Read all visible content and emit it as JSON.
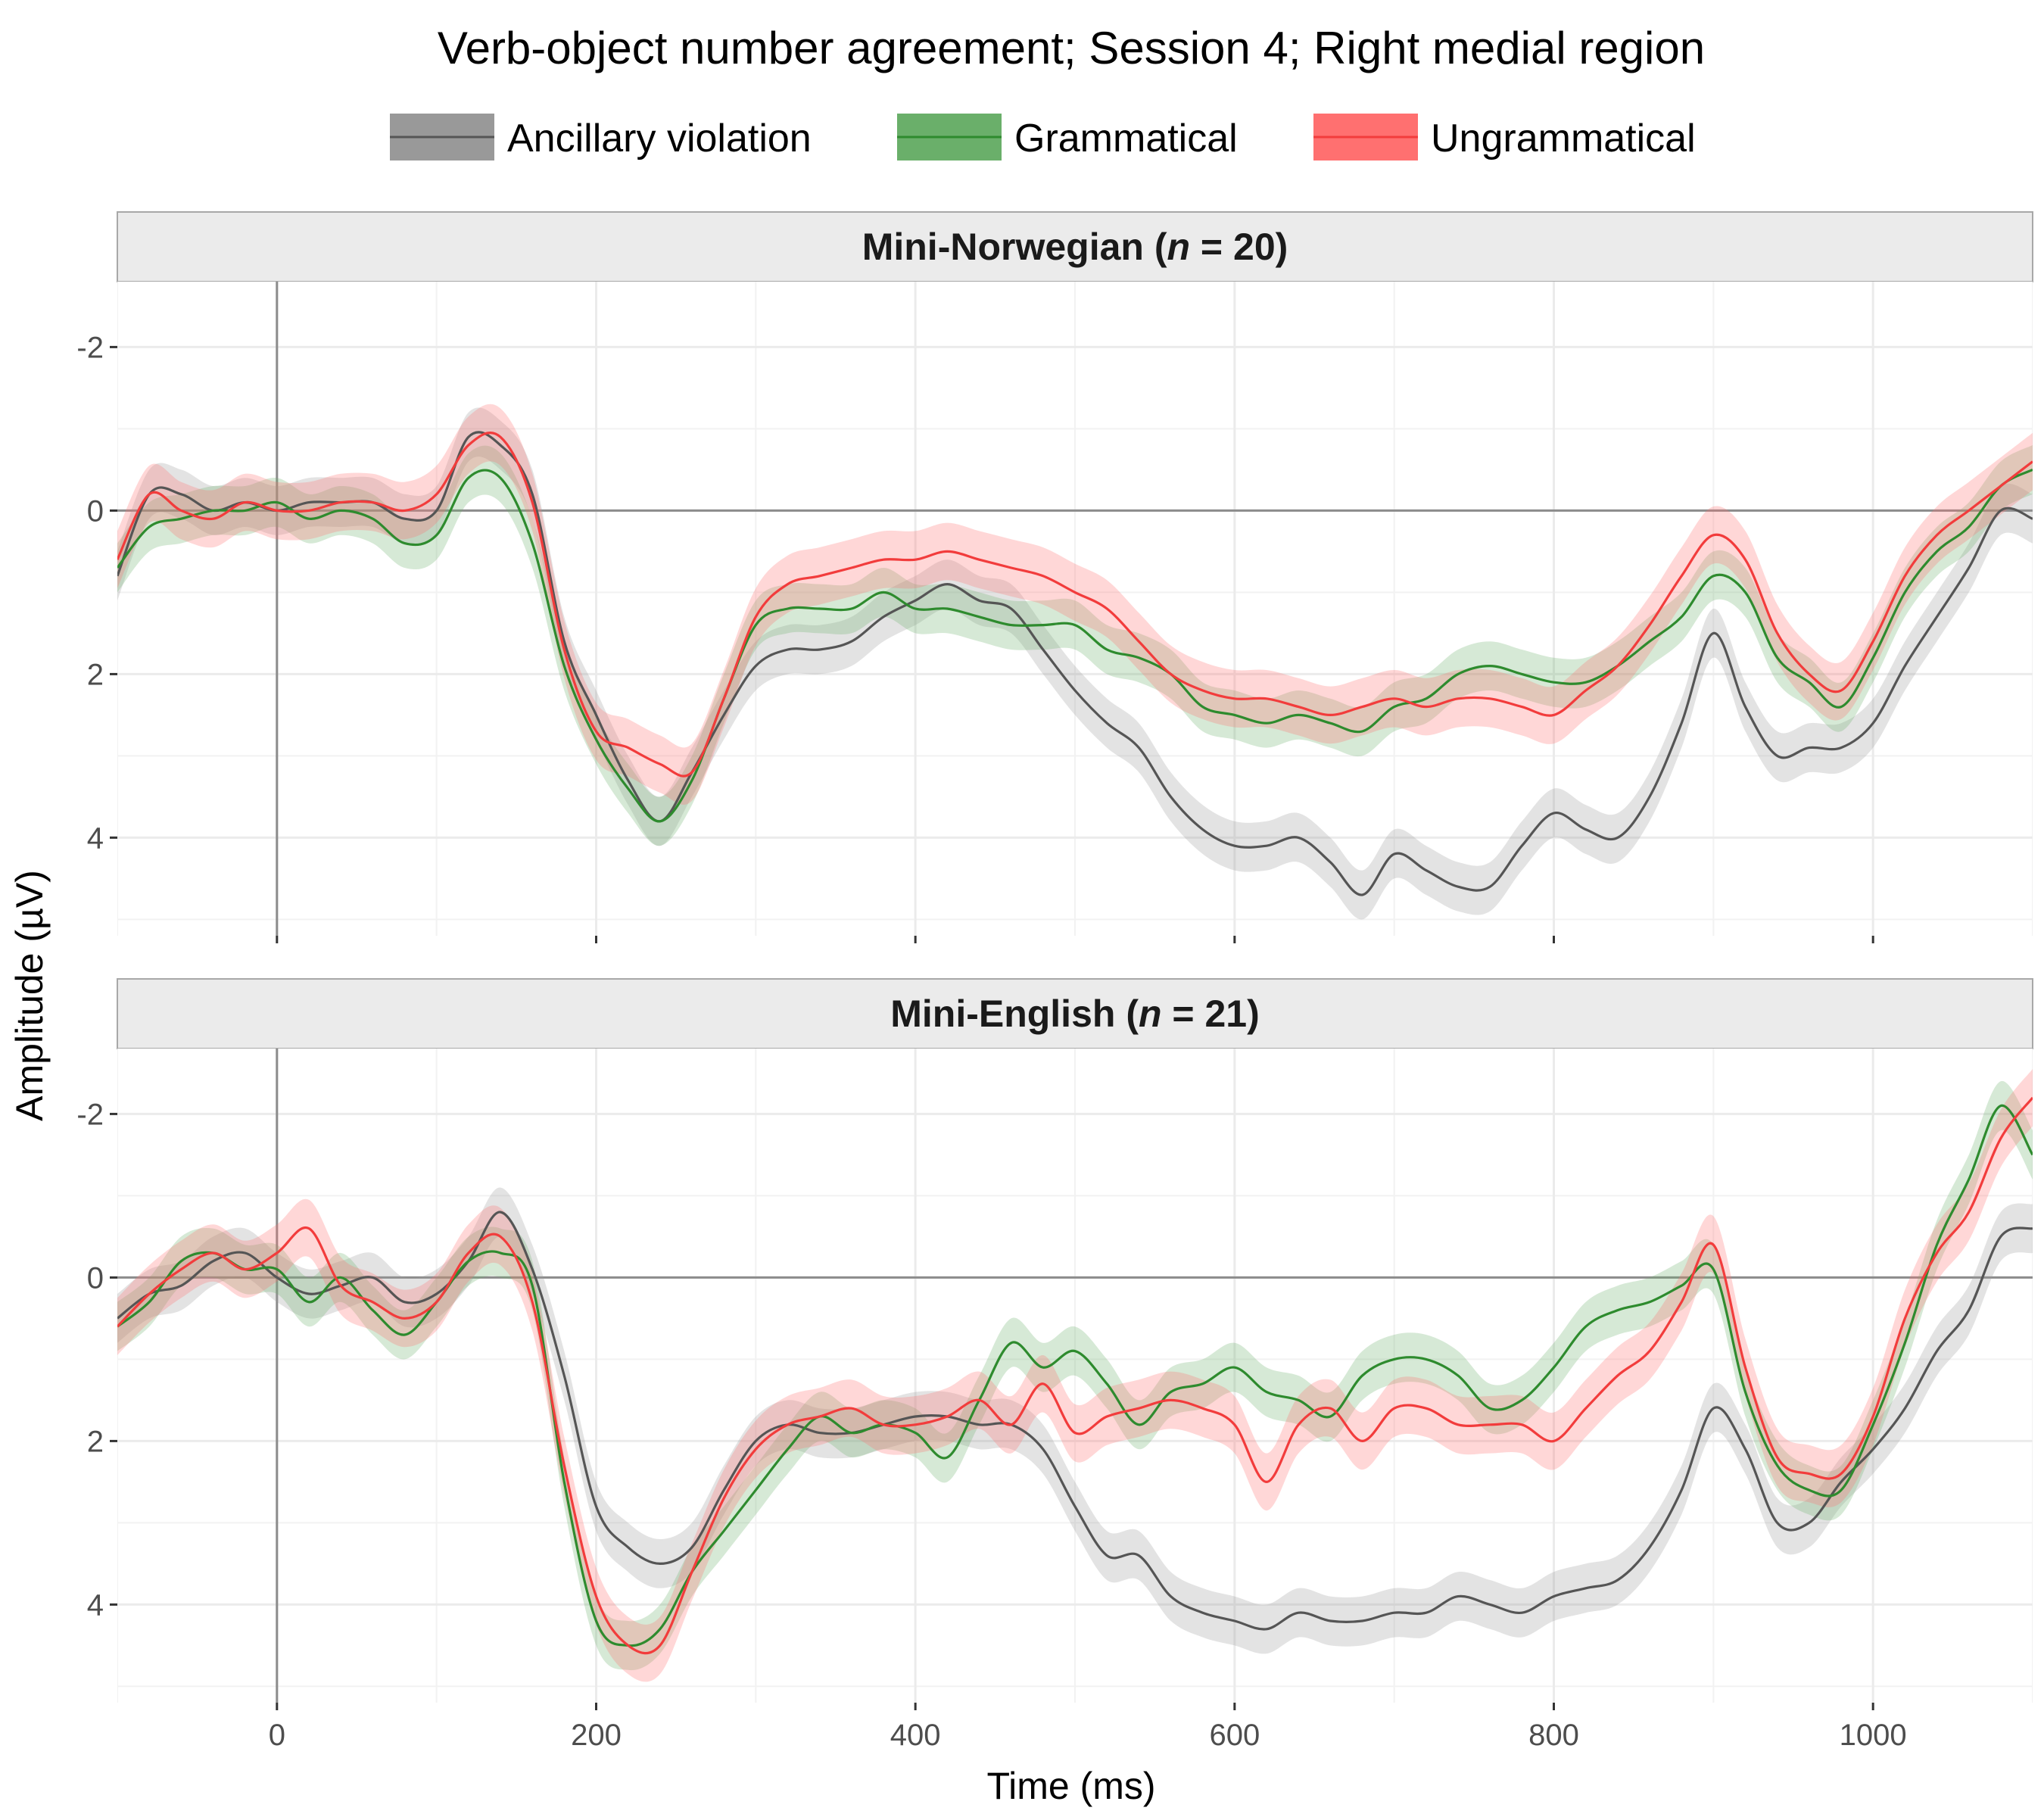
{
  "chart_data": {
    "type": "line",
    "title": "Verb-object number agreement; Session 4; Right medial region",
    "xlabel": "Time (ms)",
    "ylabel": "Amplitude (µV)",
    "xlim": [
      -100,
      1100
    ],
    "ylim": [
      5.2,
      -2.8
    ],
    "y_reversed": true,
    "xticks": [
      0,
      200,
      400,
      600,
      800,
      1000
    ],
    "yticks": [
      -2,
      0,
      2,
      4
    ],
    "grid": true,
    "legend_position": "top",
    "legend": [
      {
        "label": "Ancillary violation",
        "color": "#555555",
        "fill": "#999999"
      },
      {
        "label": "Grammatical",
        "color": "#2e8b2e",
        "fill": "#6aaf6a"
      },
      {
        "label": "Ungrammatical",
        "color": "#f23c3c",
        "fill": "#ff7070"
      }
    ],
    "x": [
      -100,
      -80,
      -60,
      -40,
      -20,
      0,
      20,
      40,
      60,
      80,
      100,
      120,
      140,
      160,
      180,
      200,
      220,
      240,
      260,
      280,
      300,
      320,
      340,
      360,
      380,
      400,
      420,
      440,
      460,
      480,
      500,
      520,
      540,
      560,
      580,
      600,
      620,
      640,
      660,
      680,
      700,
      720,
      740,
      760,
      780,
      800,
      820,
      840,
      860,
      880,
      900,
      920,
      940,
      960,
      980,
      1000,
      1020,
      1040,
      1060,
      1080,
      1100
    ],
    "panels": [
      {
        "title_prefix": "Mini-Norwegian (",
        "title_italic": "n",
        "title_suffix": " = 20)",
        "series": [
          {
            "name": "Ancillary violation",
            "band": 0.3,
            "values": [
              0.8,
              -0.2,
              -0.2,
              0.0,
              -0.1,
              0.0,
              -0.1,
              -0.1,
              -0.1,
              0.1,
              0.0,
              -0.9,
              -0.8,
              -0.2,
              1.6,
              2.5,
              3.3,
              3.8,
              3.2,
              2.5,
              1.9,
              1.7,
              1.7,
              1.6,
              1.3,
              1.1,
              0.9,
              1.1,
              1.2,
              1.7,
              2.2,
              2.6,
              2.9,
              3.5,
              3.9,
              4.1,
              4.1,
              4.0,
              4.3,
              4.7,
              4.2,
              4.4,
              4.6,
              4.6,
              4.1,
              3.7,
              3.9,
              4.0,
              3.5,
              2.6,
              1.5,
              2.4,
              3.0,
              2.9,
              2.9,
              2.6,
              1.9,
              1.3,
              0.7,
              0.0,
              0.1
            ]
          },
          {
            "name": "Grammatical",
            "band": 0.3,
            "values": [
              0.7,
              0.2,
              0.1,
              0.0,
              0.0,
              -0.1,
              0.1,
              0.0,
              0.1,
              0.4,
              0.3,
              -0.4,
              -0.4,
              0.4,
              1.9,
              2.8,
              3.4,
              3.8,
              3.3,
              2.3,
              1.4,
              1.2,
              1.2,
              1.2,
              1.0,
              1.2,
              1.2,
              1.3,
              1.4,
              1.4,
              1.4,
              1.7,
              1.8,
              2.0,
              2.4,
              2.5,
              2.6,
              2.5,
              2.6,
              2.7,
              2.4,
              2.3,
              2.0,
              1.9,
              2.0,
              2.1,
              2.1,
              1.9,
              1.6,
              1.3,
              0.8,
              1.0,
              1.8,
              2.1,
              2.4,
              1.8,
              1.0,
              0.5,
              0.2,
              -0.3,
              -0.5
            ]
          },
          {
            "name": "Ungrammatical",
            "band": 0.35,
            "values": [
              0.6,
              -0.2,
              0.0,
              0.1,
              -0.1,
              0.0,
              0.0,
              -0.1,
              -0.1,
              0.0,
              -0.2,
              -0.8,
              -0.9,
              -0.1,
              1.7,
              2.7,
              2.9,
              3.1,
              3.2,
              2.3,
              1.3,
              0.9,
              0.8,
              0.7,
              0.6,
              0.6,
              0.5,
              0.6,
              0.7,
              0.8,
              1.0,
              1.2,
              1.6,
              2.0,
              2.2,
              2.3,
              2.3,
              2.4,
              2.5,
              2.4,
              2.3,
              2.4,
              2.3,
              2.3,
              2.4,
              2.5,
              2.2,
              1.9,
              1.4,
              0.8,
              0.3,
              0.6,
              1.5,
              2.0,
              2.2,
              1.6,
              0.8,
              0.3,
              0.0,
              -0.3,
              -0.6
            ]
          }
        ]
      },
      {
        "title_prefix": "Mini-English (",
        "title_italic": "n",
        "title_suffix": " = 21)",
        "series": [
          {
            "name": "Ancillary violation",
            "band": 0.3,
            "values": [
              0.5,
              0.2,
              0.1,
              -0.2,
              -0.3,
              0.0,
              0.2,
              0.1,
              0.0,
              0.3,
              0.2,
              -0.2,
              -0.8,
              -0.1,
              1.2,
              2.8,
              3.3,
              3.5,
              3.3,
              2.6,
              2.0,
              1.8,
              1.9,
              1.9,
              1.8,
              1.7,
              1.7,
              1.8,
              1.8,
              2.1,
              2.8,
              3.4,
              3.4,
              3.9,
              4.1,
              4.2,
              4.3,
              4.1,
              4.2,
              4.2,
              4.1,
              4.1,
              3.9,
              4.0,
              4.1,
              3.9,
              3.8,
              3.7,
              3.3,
              2.6,
              1.6,
              2.1,
              3.0,
              3.0,
              2.5,
              2.1,
              1.6,
              0.9,
              0.4,
              -0.5,
              -0.6
            ]
          },
          {
            "name": "Grammatical",
            "band": 0.3,
            "values": [
              0.6,
              0.3,
              -0.2,
              -0.3,
              -0.1,
              -0.1,
              0.3,
              0.0,
              0.4,
              0.7,
              0.3,
              -0.2,
              -0.3,
              0.1,
              2.5,
              4.2,
              4.5,
              4.3,
              3.6,
              3.1,
              2.6,
              2.1,
              1.7,
              1.9,
              1.8,
              1.9,
              2.2,
              1.5,
              0.8,
              1.1,
              0.9,
              1.3,
              1.8,
              1.4,
              1.3,
              1.1,
              1.4,
              1.5,
              1.7,
              1.2,
              1.0,
              1.0,
              1.2,
              1.6,
              1.5,
              1.1,
              0.6,
              0.4,
              0.3,
              0.1,
              -0.1,
              1.4,
              2.3,
              2.6,
              2.6,
              1.8,
              0.8,
              -0.4,
              -1.2,
              -2.1,
              -1.5
            ]
          },
          {
            "name": "Ungrammatical",
            "band": 0.35,
            "values": [
              0.6,
              0.2,
              -0.1,
              -0.3,
              -0.1,
              -0.3,
              -0.6,
              0.1,
              0.3,
              0.5,
              0.3,
              -0.3,
              -0.5,
              0.3,
              2.3,
              3.9,
              4.5,
              4.5,
              3.6,
              2.7,
              2.1,
              1.8,
              1.7,
              1.6,
              1.8,
              1.8,
              1.7,
              1.5,
              1.8,
              1.3,
              1.9,
              1.7,
              1.6,
              1.5,
              1.6,
              1.8,
              2.5,
              1.8,
              1.6,
              2.0,
              1.6,
              1.6,
              1.8,
              1.8,
              1.8,
              2.0,
              1.6,
              1.2,
              0.9,
              0.3,
              -0.4,
              1.1,
              2.2,
              2.4,
              2.4,
              1.7,
              0.5,
              -0.3,
              -0.8,
              -1.7,
              -2.2
            ]
          }
        ]
      }
    ]
  }
}
